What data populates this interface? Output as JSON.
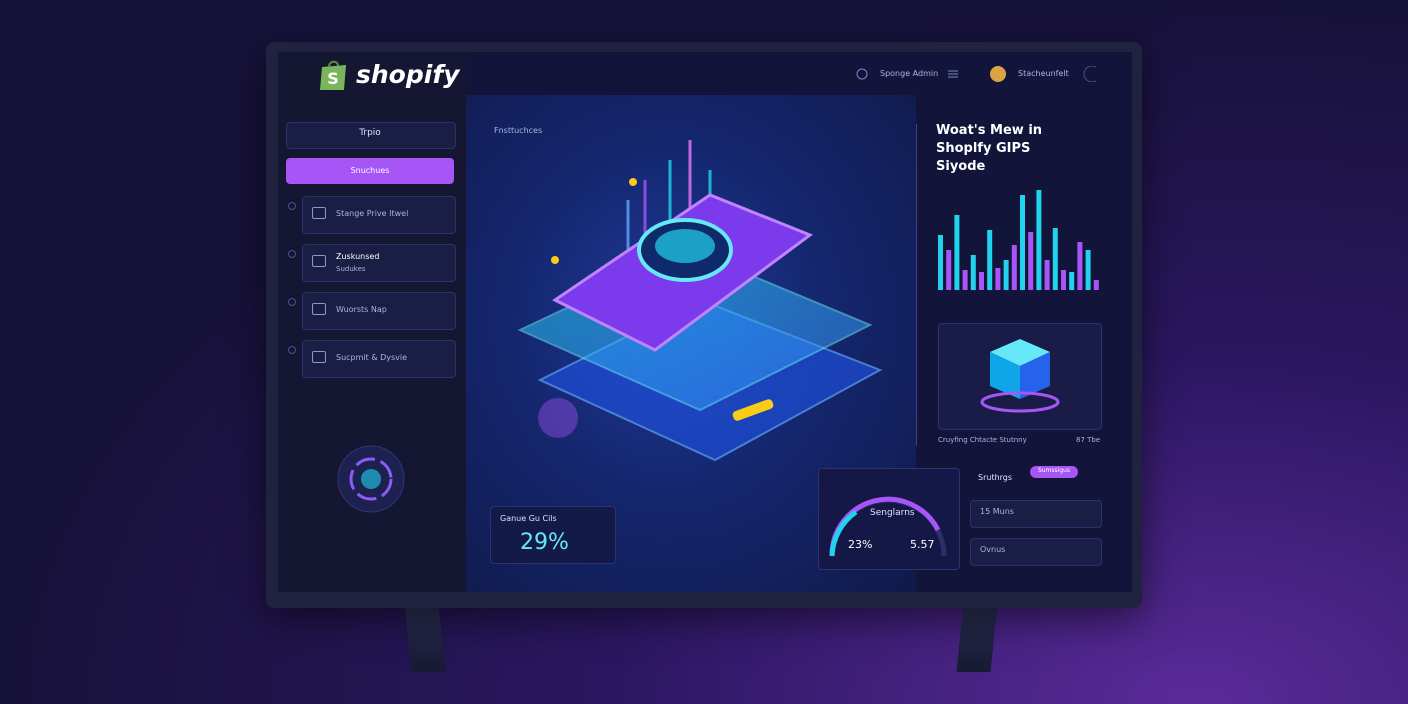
{
  "logo": "shopify",
  "topbar": {
    "search": "Sponge Admin",
    "user": "Stacheunfelt"
  },
  "sidebar": {
    "header": "Trpio",
    "items": [
      {
        "label": "Snuchues"
      },
      {
        "label": "Stange Prive Itwel"
      },
      {
        "label": "Zuskunsed",
        "sub": "Sudukes"
      },
      {
        "label": "Wuorsts Nap"
      },
      {
        "label": "Sucpmit & Dysvie"
      }
    ]
  },
  "main": {
    "label": "Fnsttuchces",
    "stat": {
      "title": "Ganue Gu Cils",
      "value": "29%"
    }
  },
  "panel": {
    "title": "Woat's Mew in Shoplfy GIPS Siyode",
    "chart_values": [
      55,
      40,
      75,
      20,
      35,
      18,
      60,
      22,
      30,
      45,
      95,
      58,
      100,
      30,
      62,
      20,
      18,
      48,
      40,
      10
    ],
    "chart_colors": [
      "#22d3ee",
      "#a855f7"
    ],
    "caption": "Cruyfing Chtacte Stutnny",
    "caption_right": "87 Tbe"
  },
  "gauge": {
    "title": "Senglarns",
    "left": "23%",
    "right": "5.57"
  },
  "list": {
    "header": "Sruthrgs",
    "badge": "Sumssigus",
    "rows": [
      "15 Muns",
      "Ovnus"
    ]
  }
}
